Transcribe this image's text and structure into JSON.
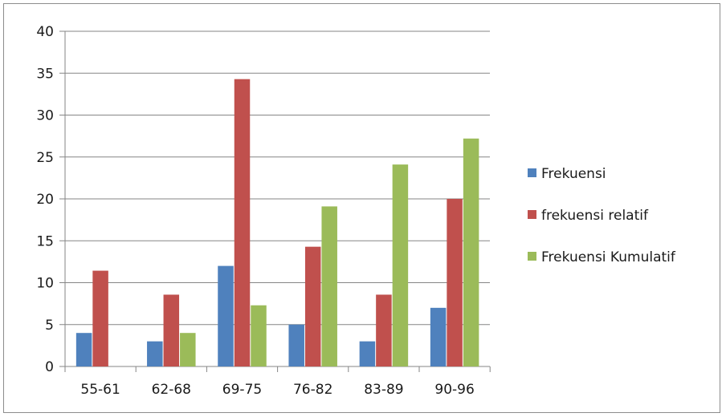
{
  "chart_data": {
    "type": "bar",
    "title": "",
    "xlabel": "",
    "ylabel": "",
    "categories": [
      "55-61",
      "62-68",
      "69-75",
      "76-82",
      "83-89",
      "90-96"
    ],
    "ylim": [
      0,
      40
    ],
    "yticks": [
      0,
      5,
      10,
      15,
      20,
      25,
      30,
      35,
      40
    ],
    "grid": true,
    "legend_position": "right",
    "series": [
      {
        "name": "Frekuensi",
        "color": "#4f81bd",
        "values": [
          4,
          3,
          12,
          5,
          3,
          7
        ]
      },
      {
        "name": "frekuensi relatif",
        "color": "#c0504d",
        "values": [
          11.43,
          8.57,
          34.29,
          14.29,
          8.57,
          20
        ]
      },
      {
        "name": "Frekuensi Kumulatif",
        "color": "#9bbb59",
        "values": [
          0,
          4,
          7.3,
          19.1,
          24.1,
          27.2
        ]
      }
    ]
  }
}
